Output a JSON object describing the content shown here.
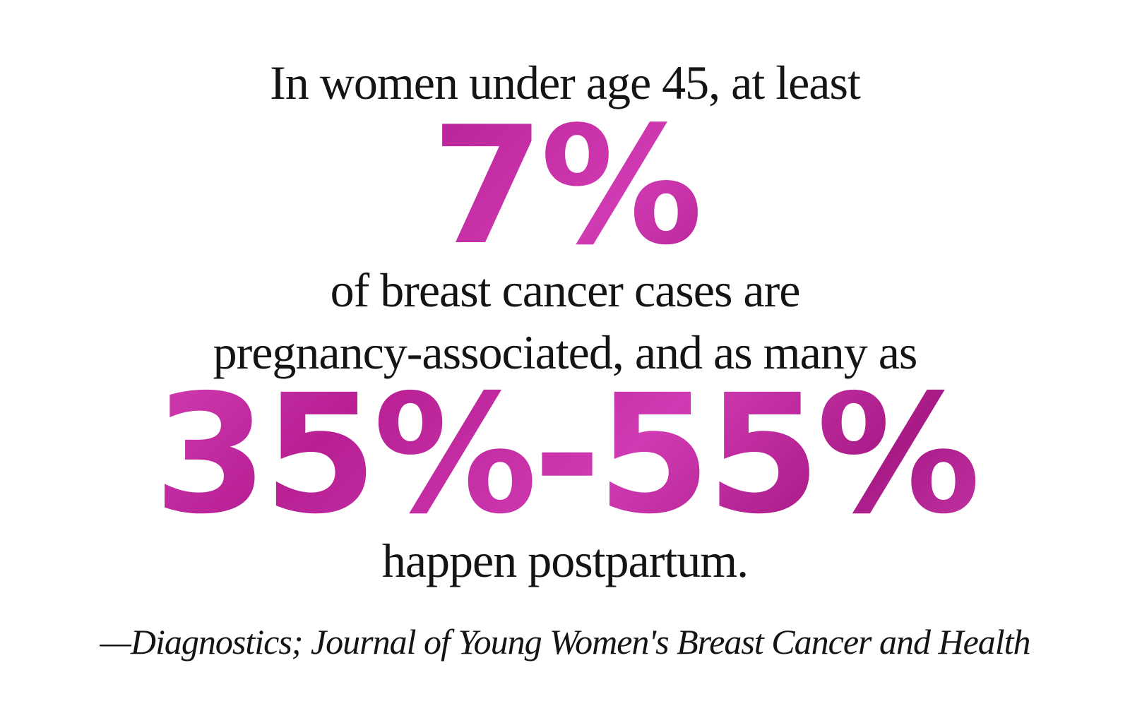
{
  "intro": "In women under age 45, at least",
  "stat_primary": "7%",
  "middle_line_1": "of breast cancer cases are",
  "middle_line_2": "pregnancy-associated, and as many as",
  "stat_secondary": "35%-55%",
  "outro": "happen postpartum.",
  "source": "—Diagnostics; Journal of Young Women's Breast Cancer and Health",
  "colors": {
    "stat_accent": "#c02a9e",
    "text": "#141414",
    "background": "#ffffff"
  }
}
